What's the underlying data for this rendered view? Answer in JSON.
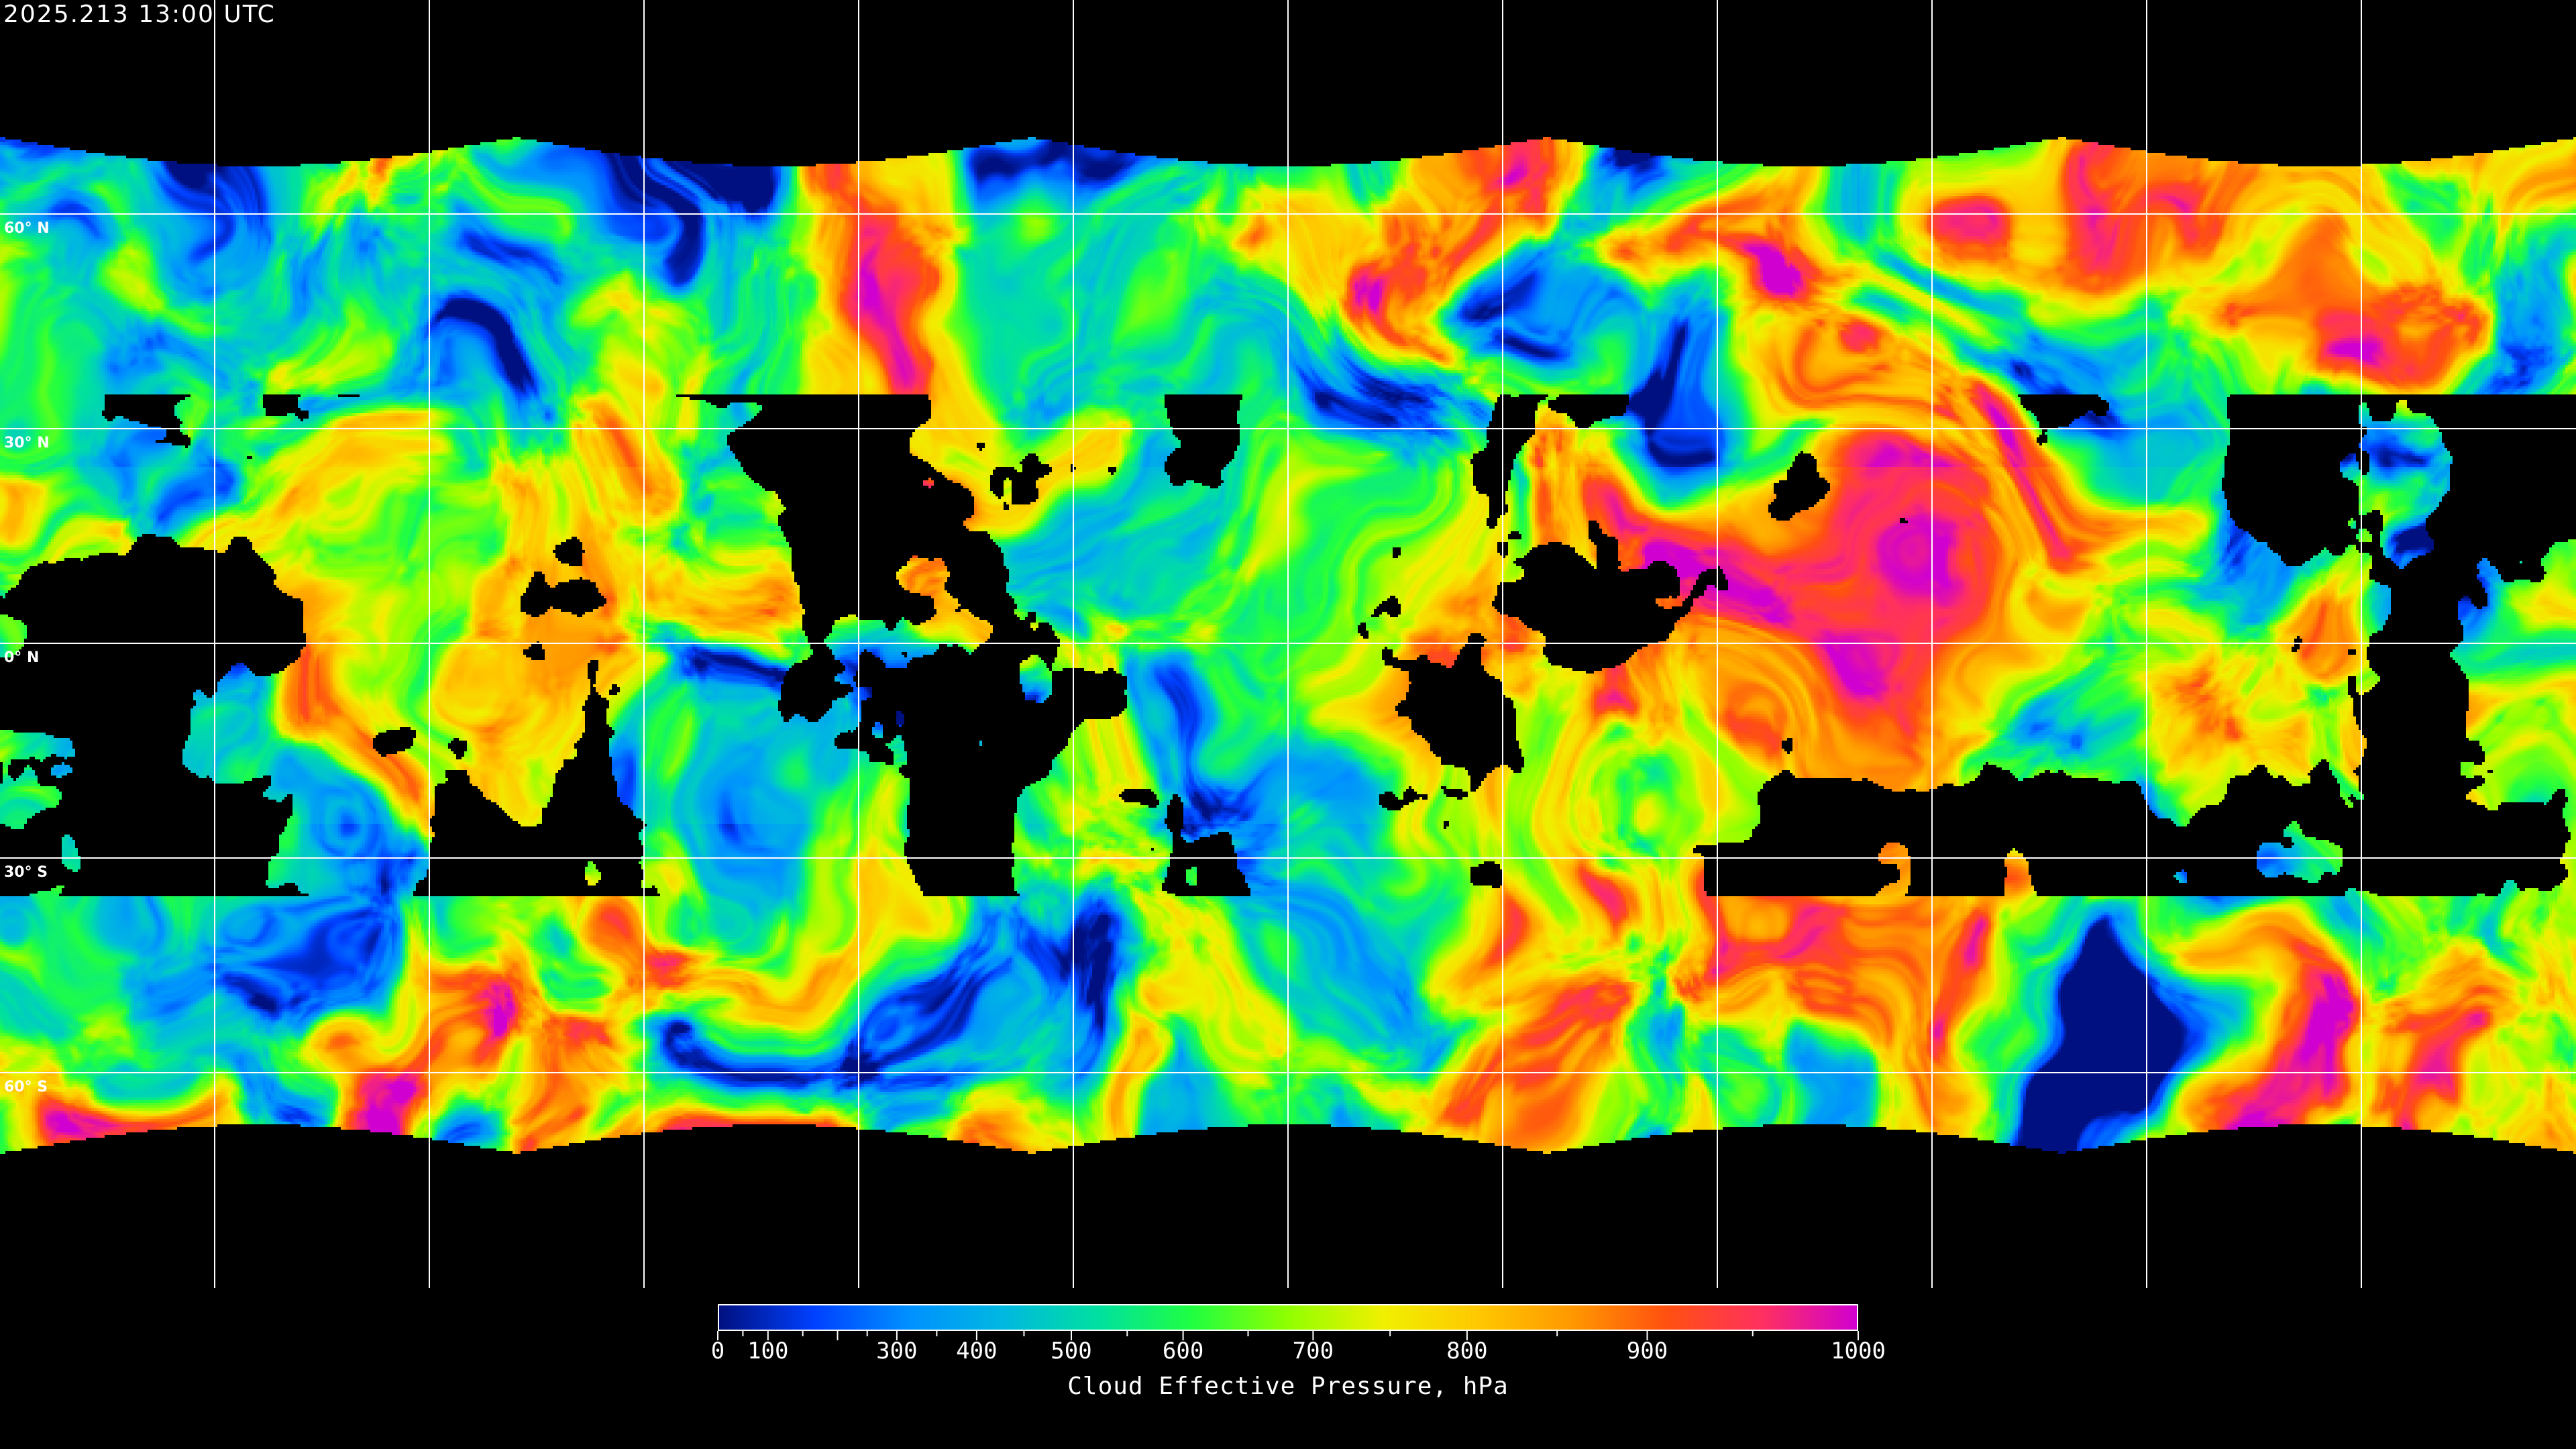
{
  "timestamp": "2025.213 13:00 UTC",
  "map": {
    "projection": "equirectangular",
    "graticule_spacing_deg": 30,
    "gridline_color": "#ffffff",
    "coastline_color": "#ffffff",
    "no_data_color": "#000000",
    "lat_labels": [
      "60° N",
      "30° N",
      "0° N",
      "30° S",
      "60° S"
    ]
  },
  "colorbar": {
    "title": "Cloud Effective Pressure, hPa",
    "min": 0,
    "max": 1000,
    "tick_labels": [
      "0",
      "100",
      "300",
      "400",
      "500",
      "600",
      "700",
      "800",
      "900",
      "1000"
    ],
    "colormap": [
      "#001080",
      "#0040ff",
      "#0090ff",
      "#00b8e0",
      "#00e0a0",
      "#20ff40",
      "#90ff00",
      "#f0f000",
      "#ffc800",
      "#ff9800",
      "#ff5010",
      "#ff3060",
      "#d000d0"
    ]
  }
}
